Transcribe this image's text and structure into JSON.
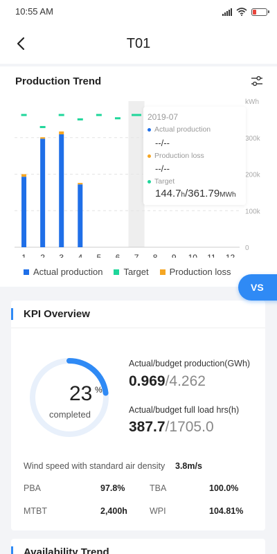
{
  "status": {
    "time": "10:55 AM"
  },
  "header": {
    "title": "T01"
  },
  "trend": {
    "title": "Production Trend",
    "legend": {
      "actual": "Actual production",
      "target": "Target",
      "loss": "Production loss"
    },
    "tooltip": {
      "date": "2019-07",
      "actual_label": "Actual production",
      "actual_value": "--/--",
      "loss_label": "Production loss",
      "loss_value": "--/--",
      "target_label": "Target",
      "target_value_1": "144.7",
      "target_unit_1": "h",
      "target_sep": "/",
      "target_value_2": "361.79",
      "target_unit_2": "MWh"
    }
  },
  "vs_button": "VS",
  "kpi": {
    "title": "KPI Overview",
    "ring_value": "23",
    "ring_unit": "%",
    "ring_label": "completed",
    "ring_fraction": 0.23,
    "production_label": "Actual/budget production(GWh)",
    "production_actual": "0.969",
    "production_budget": "/4.262",
    "fullload_label": "Actual/budget full load hrs(h)",
    "fullload_actual": "387.7",
    "fullload_budget": "/1705.0",
    "wind_label": "Wind speed with standard air density",
    "wind_value": "3.8m/s",
    "metrics": [
      {
        "label": "PBA",
        "value": "97.8%"
      },
      {
        "label": "TBA",
        "value": "100.0%"
      },
      {
        "label": "MTBT",
        "value": "2,400h"
      },
      {
        "label": "WPI",
        "value": "104.81%"
      }
    ]
  },
  "availability": {
    "title": "Availability Trend"
  },
  "colors": {
    "accent": "#2f8af5",
    "bar": "#1f6fe8",
    "target": "#1fd69a",
    "loss": "#f5a623"
  },
  "chart_data": {
    "type": "bar",
    "categories": [
      "1",
      "2",
      "3",
      "4",
      "5",
      "6",
      "7",
      "8",
      "9",
      "10",
      "11",
      "12"
    ],
    "y_unit": "kWh",
    "ylim": [
      0,
      400000
    ],
    "y_ticks": [
      "0",
      "100k",
      "200k",
      "300k"
    ],
    "series": [
      {
        "name": "Actual production",
        "values": [
          193000,
          297000,
          309000,
          172000,
          null,
          null,
          null,
          null,
          null,
          null,
          null,
          null
        ]
      },
      {
        "name": "Production loss",
        "values": [
          7000,
          4000,
          8000,
          4000,
          null,
          null,
          null,
          null,
          null,
          null,
          null,
          null
        ]
      },
      {
        "name": "Target",
        "values": [
          362000,
          329000,
          362000,
          350000,
          362000,
          353000,
          362000,
          null,
          null,
          null,
          null,
          null
        ]
      }
    ],
    "highlighted_category": "7"
  }
}
